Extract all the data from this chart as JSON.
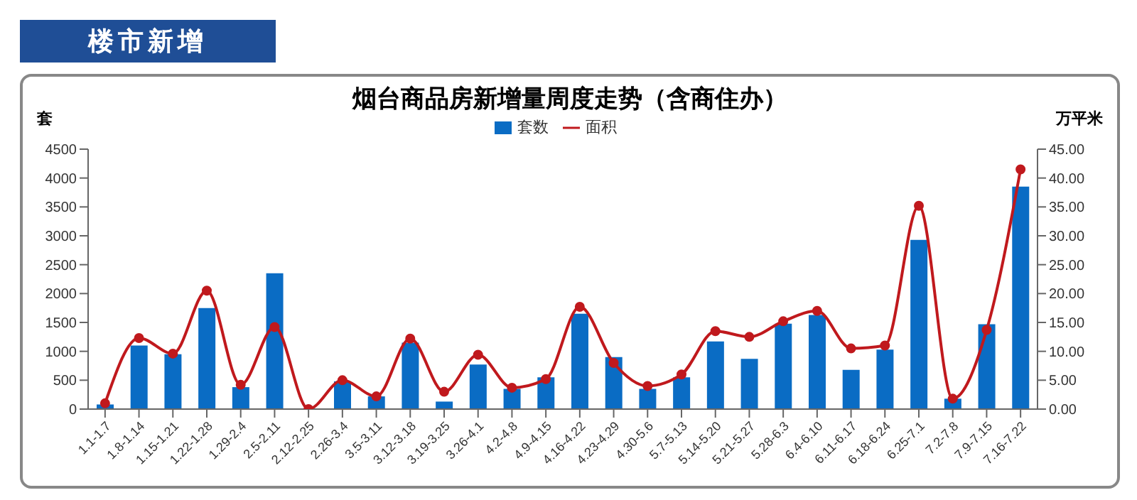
{
  "chart_data": {
    "type": "bar",
    "title": "烟台商品房新增量周度走势（含商住办）",
    "ylabel": "套",
    "y2label": "万平米",
    "annotations": [
      "楼市新增"
    ],
    "categories": [
      "1.1-1.7",
      "1.8-1.14",
      "1.15-1.21",
      "1.22-1.28",
      "1.29-2.4",
      "2.5-2.11",
      "2.12-2.25",
      "2.26-3.4",
      "3.5-3.11",
      "3.12-3.18",
      "3.19-3.25",
      "3.26-4.1",
      "4.2-4.8",
      "4.9-4.15",
      "4.16-4.22",
      "4.23-4.29",
      "4.30-5.6",
      "5.7-5.13",
      "5.14-5.20",
      "5.21-5.27",
      "5.28-6.3",
      "6.4-6.10",
      "6.11-6.17",
      "6.18-6.24",
      "6.25-7.1",
      "7.2-7.8",
      "7.9-7.15",
      "7.16-7.22"
    ],
    "series": [
      {
        "name": "套数",
        "color": "#0a6cc4",
        "values": [
          80,
          1100,
          950,
          1750,
          380,
          2350,
          0,
          480,
          220,
          1150,
          130,
          770,
          350,
          550,
          1650,
          900,
          350,
          550,
          1170,
          870,
          1480,
          1630,
          680,
          1030,
          2930,
          180,
          1470,
          3850
        ]
      },
      {
        "name": "面积",
        "type": "line",
        "axis": "y2",
        "color": "#c0191d",
        "values": [
          1.0,
          12.3,
          9.6,
          20.5,
          4.2,
          14.2,
          0,
          5.0,
          2.2,
          12.2,
          3.0,
          9.4,
          3.7,
          5.2,
          17.7,
          8.0,
          4.0,
          6.0,
          13.5,
          12.5,
          15.2,
          17.0,
          10.5,
          11.0,
          35.2,
          1.8,
          13.7,
          41.5
        ]
      }
    ],
    "ylim": [
      0,
      4500
    ],
    "yticks": [
      0,
      500,
      1000,
      1500,
      2000,
      2500,
      3000,
      3500,
      4000,
      4500
    ],
    "y2lim": [
      0,
      45
    ],
    "y2ticks": [
      {
        "value": 0,
        "label": "0.00"
      },
      {
        "value": 5,
        "label": "5.00"
      },
      {
        "value": 10,
        "label": "10.00"
      },
      {
        "value": 15,
        "label": "15.00"
      },
      {
        "value": 20,
        "label": "20.00"
      },
      {
        "value": 25,
        "label": "25.00"
      },
      {
        "value": 30,
        "label": "30.00"
      },
      {
        "value": 35,
        "label": "35.00"
      },
      {
        "value": 40,
        "label": "40.00"
      },
      {
        "value": 45,
        "label": "45.00"
      }
    ],
    "legend": "top",
    "marker": "circle",
    "line_style": "solid",
    "grid": false
  }
}
